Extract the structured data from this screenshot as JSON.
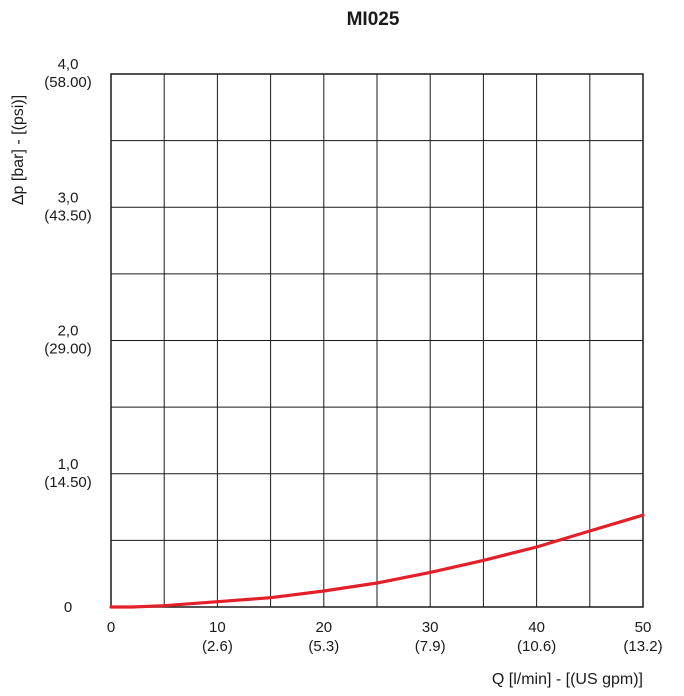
{
  "chart_data": {
    "type": "line",
    "title": "MI025",
    "xlabel": "Q [l/min] - [(US gpm)]",
    "ylabel": "Δp [bar] - [(psi)]",
    "xlim": [
      0,
      50
    ],
    "ylim": [
      0,
      4.0
    ],
    "x_ticks": [
      {
        "value": 0,
        "line1": "0",
        "line2": ""
      },
      {
        "value": 10,
        "line1": "10",
        "line2": "(2.6)"
      },
      {
        "value": 20,
        "line1": "20",
        "line2": "(5.3)"
      },
      {
        "value": 30,
        "line1": "30",
        "line2": "(7.9)"
      },
      {
        "value": 40,
        "line1": "40",
        "line2": "(10.6)"
      },
      {
        "value": 50,
        "line1": "50",
        "line2": "(13.2)"
      }
    ],
    "y_ticks": [
      {
        "value": 0,
        "line1": "0",
        "line2": ""
      },
      {
        "value": 1.0,
        "line1": "1,0",
        "line2": "(14.50)"
      },
      {
        "value": 2.0,
        "line1": "2,0",
        "line2": "(29.00)"
      },
      {
        "value": 3.0,
        "line1": "3,0",
        "line2": "(43.50)"
      },
      {
        "value": 4.0,
        "line1": "4,0",
        "line2": "(58.00)"
      }
    ],
    "grid": true,
    "grid_x_step": 5,
    "grid_y_step": 0.5,
    "series": [
      {
        "color": "#e3202a",
        "x": [
          0,
          2,
          5,
          10,
          15,
          20,
          25,
          30,
          35,
          40,
          45,
          50
        ],
        "y": [
          0.0,
          0.0,
          0.01,
          0.04,
          0.07,
          0.12,
          0.18,
          0.26,
          0.35,
          0.45,
          0.57,
          0.69
        ]
      }
    ]
  }
}
